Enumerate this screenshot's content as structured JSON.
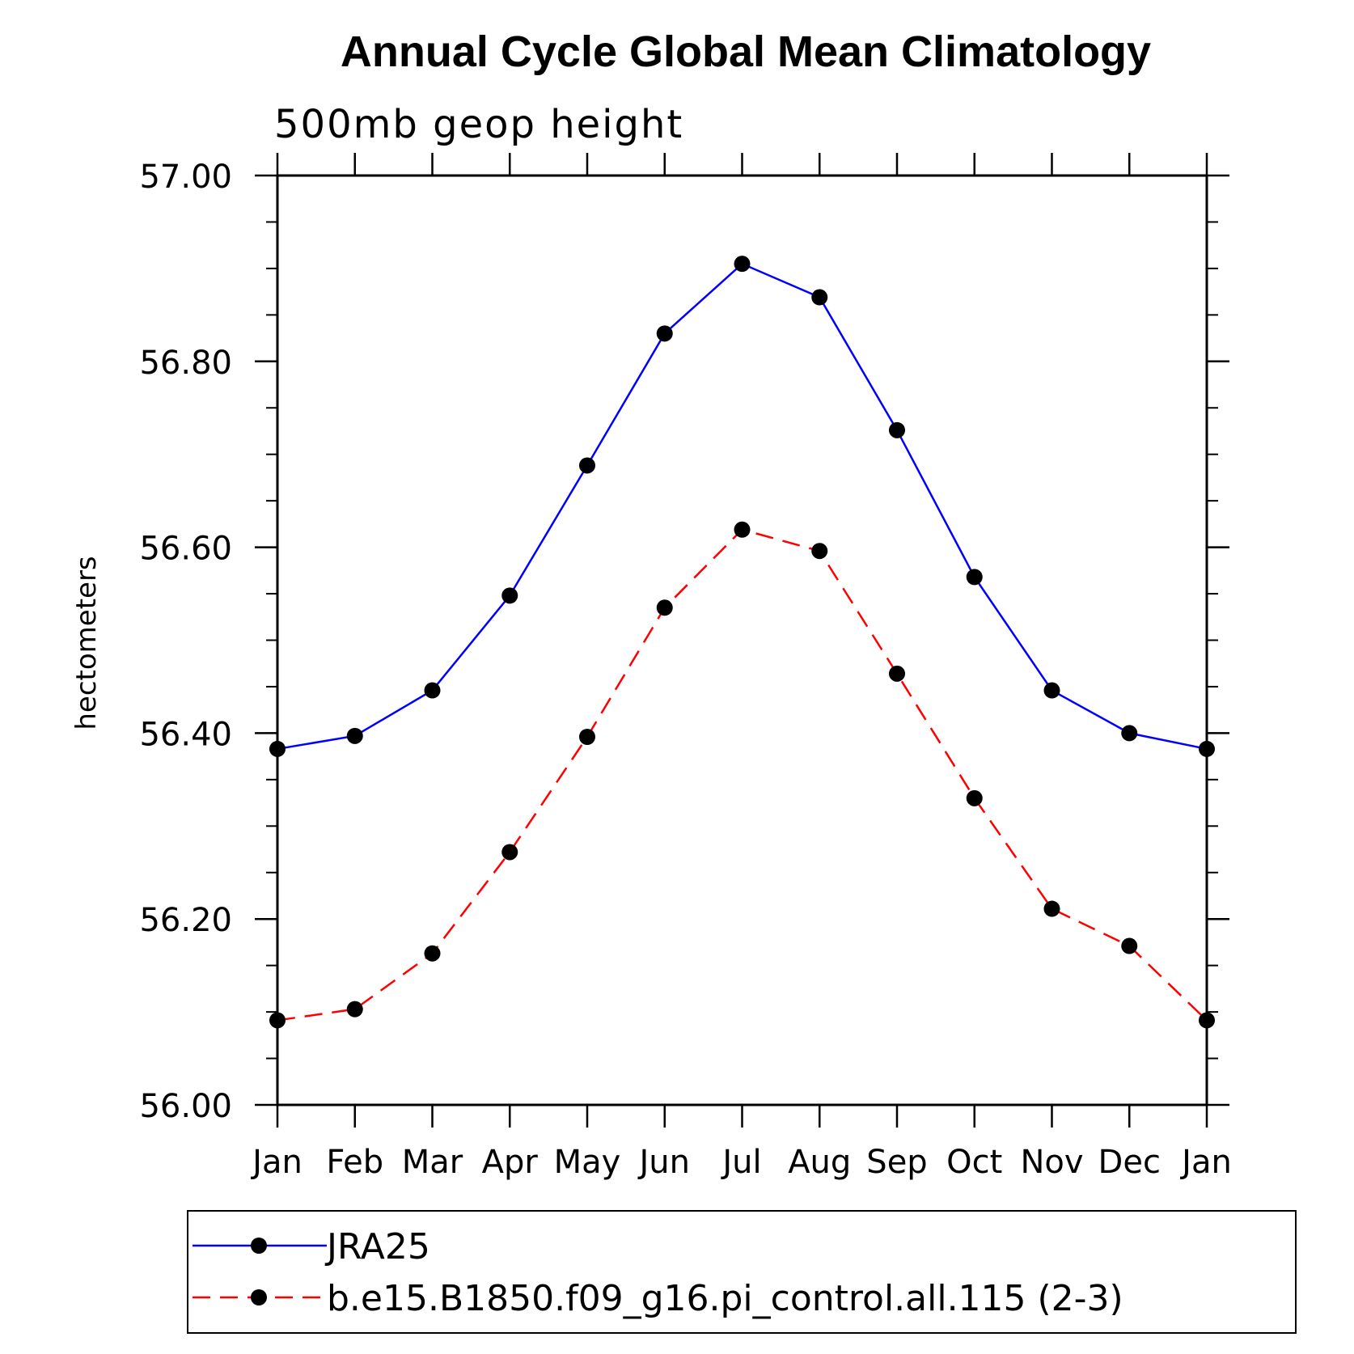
{
  "chart_data": {
    "type": "line",
    "title": "Annual Cycle Global Mean Climatology",
    "subtitle": "500mb geop height",
    "xlabel": "",
    "ylabel": "hectometers",
    "categories": [
      "Jan",
      "Feb",
      "Mar",
      "Apr",
      "May",
      "Jun",
      "Jul",
      "Aug",
      "Sep",
      "Oct",
      "Nov",
      "Dec",
      "Jan"
    ],
    "ylim": [
      56.0,
      57.0
    ],
    "yticks": [
      "56.00",
      "56.20",
      "56.40",
      "56.60",
      "56.80",
      "57.00"
    ],
    "yminor_step": 0.05,
    "grid": false,
    "legend_position": "bottom",
    "series": [
      {
        "name": "JRA25",
        "color": "#0000ff",
        "dash": "solid",
        "marker": "filled-circle",
        "values": [
          56.383,
          56.397,
          56.446,
          56.548,
          56.688,
          56.83,
          56.905,
          56.869,
          56.726,
          56.568,
          56.446,
          56.4,
          56.383
        ]
      },
      {
        "name": "b.e15.B1850.f09_g16.pi_control.all.115 (2-3)",
        "color": "#ff0000",
        "dash": "dashed",
        "marker": "filled-circle",
        "values": [
          56.091,
          56.103,
          56.163,
          56.272,
          56.396,
          56.535,
          56.619,
          56.596,
          56.464,
          56.33,
          56.211,
          56.171,
          56.091
        ]
      }
    ]
  }
}
